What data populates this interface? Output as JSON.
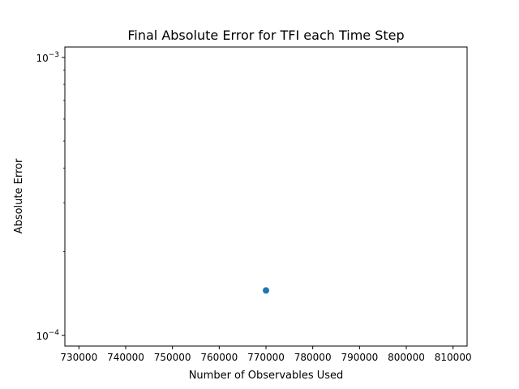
{
  "chart_data": {
    "type": "scatter",
    "title": "Final Absolute Error for TFI each Time Step",
    "xlabel": "Number of Observables Used",
    "ylabel": "Absolute Error",
    "xlim": [
      727000,
      813000
    ],
    "ylim": [
      9.15e-05,
      0.00109
    ],
    "yscale": "log",
    "grid": false,
    "x_ticks": [
      730000,
      740000,
      750000,
      760000,
      770000,
      780000,
      790000,
      800000,
      810000
    ],
    "x_tick_labels": [
      "730000",
      "740000",
      "750000",
      "760000",
      "770000",
      "780000",
      "790000",
      "800000",
      "810000"
    ],
    "y_ticks": [
      {
        "value": 0.001,
        "base": "10",
        "exp": "−3"
      },
      {
        "value": 0.0001,
        "base": "10",
        "exp": "−4"
      }
    ],
    "points": [
      {
        "x": 770000,
        "y": 0.000145
      }
    ],
    "point_color": "#1f77b4"
  }
}
